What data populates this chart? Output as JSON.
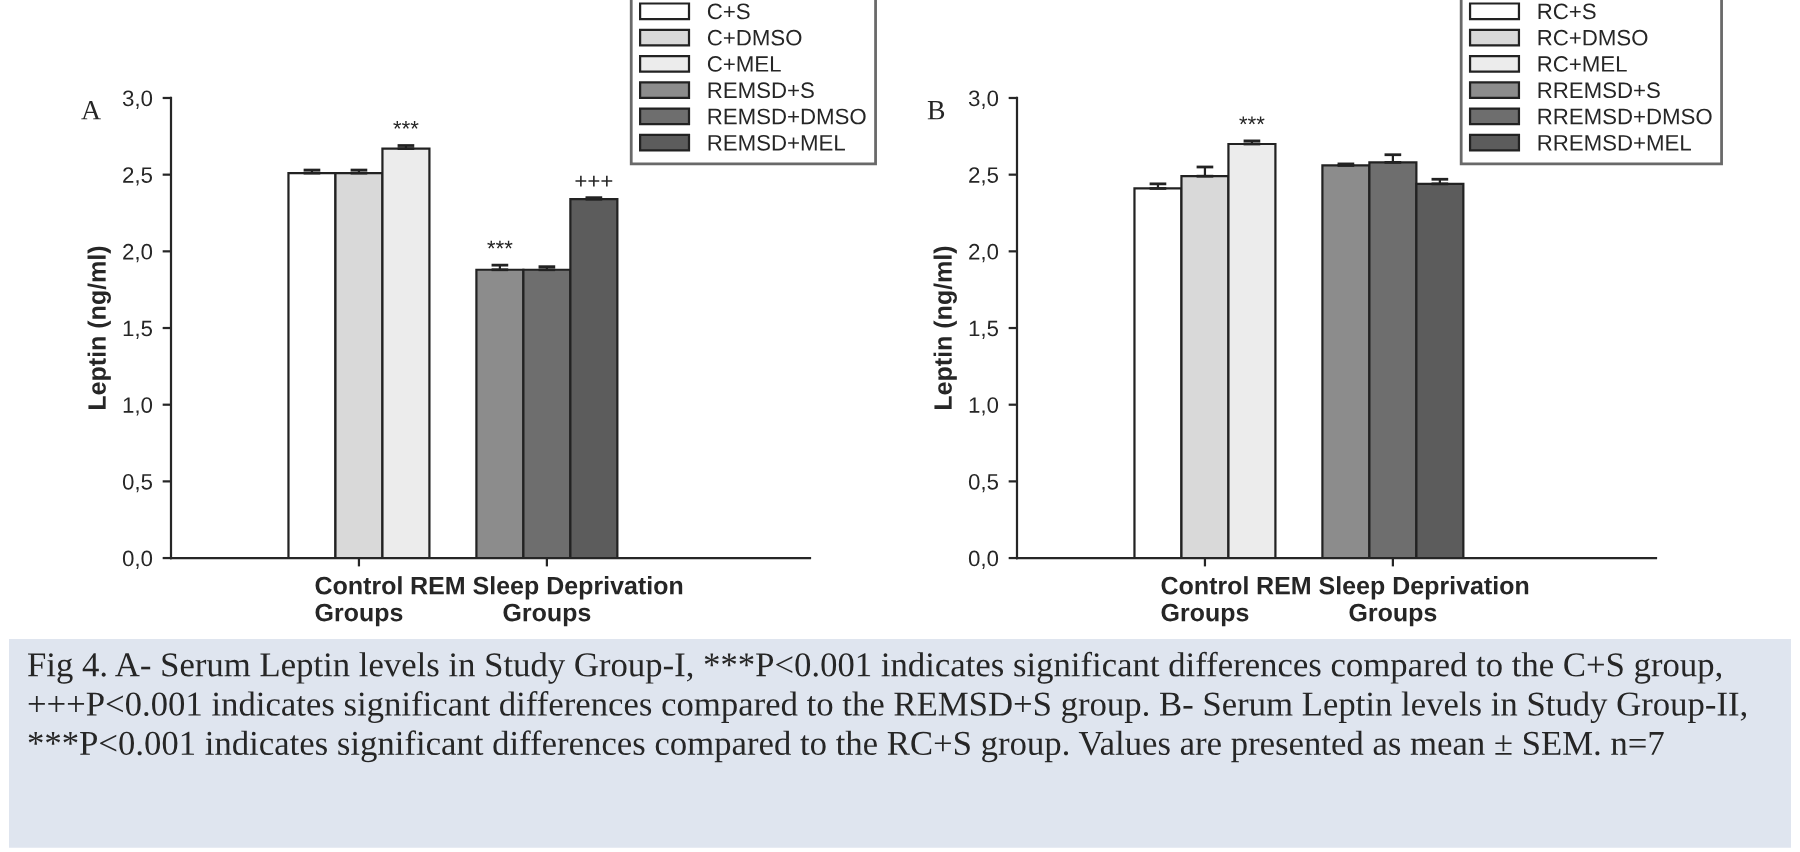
{
  "chart_data": [
    {
      "type": "bar",
      "title": "A",
      "ylabel": "Leptin (ng/ml)",
      "categories": [
        "Control\nGroups",
        "REM Sleep Deprivation\nGroups"
      ],
      "series": [
        {
          "name": "C+S",
          "color": "#ffffff",
          "values": [
            2.51,
            null
          ],
          "errors": [
            0.02,
            null
          ]
        },
        {
          "name": "C+DMSO",
          "color": "#d9d9d9",
          "values": [
            2.51,
            null
          ],
          "errors": [
            0.02,
            null
          ]
        },
        {
          "name": "C+MEL",
          "color": "#ececec",
          "values": [
            2.67,
            null
          ],
          "errors": [
            0.02,
            null
          ]
        },
        {
          "name": "REMSD+S",
          "color": "#8c8c8c",
          "values": [
            null,
            1.88
          ],
          "errors": [
            null,
            0.03
          ]
        },
        {
          "name": "REMSD+DMSO",
          "color": "#6e6e6e",
          "values": [
            null,
            1.88
          ],
          "errors": [
            null,
            0.02
          ]
        },
        {
          "name": "REMSD+MEL",
          "color": "#5c5c5c",
          "values": [
            null,
            2.34
          ],
          "errors": [
            null,
            0.01
          ]
        }
      ],
      "ylim": [
        0,
        3
      ],
      "yticks": [
        {
          "value": 0,
          "label": "0,0"
        },
        {
          "value": 0.5,
          "label": "0,5"
        },
        {
          "value": 1,
          "label": "1,0"
        },
        {
          "value": 1.5,
          "label": "1,5"
        },
        {
          "value": 2,
          "label": "2,0"
        },
        {
          "value": 2.5,
          "label": "2,5"
        },
        {
          "value": 3,
          "label": "3,0"
        }
      ],
      "legend": "top right",
      "grid": false,
      "annotations": [
        "***",
        "***",
        "+++",
        "Fig 4. A- Serum Leptin levels in Study Group-I, ***P<0.001 indicates significant differences compared to the C+S group, +++P<0.001 indicates significant differences compared to the REMSD+S group. B- Serum Leptin levels in Study Group-II, ***P<0.001 indicates significant differences compared to the RC+S group. Values are presented as mean ± SEM. n=7"
      ]
    },
    {
      "type": "bar",
      "title": "B",
      "ylabel": "Leptin (ng/ml)",
      "categories": [
        "Control\nGroups",
        "REM Sleep Deprivation\nGroups"
      ],
      "series": [
        {
          "name": "RC+S",
          "color": "#ffffff",
          "values": [
            2.41,
            null
          ],
          "errors": [
            0.03,
            null
          ]
        },
        {
          "name": "RC+DMSO",
          "color": "#d9d9d9",
          "values": [
            2.49,
            null
          ],
          "errors": [
            0.06,
            null
          ]
        },
        {
          "name": "RC+MEL",
          "color": "#ececec",
          "values": [
            2.7,
            null
          ],
          "errors": [
            0.02,
            null
          ]
        },
        {
          "name": "RREMSD+S",
          "color": "#8c8c8c",
          "values": [
            null,
            2.56
          ],
          "errors": [
            null,
            0.01
          ]
        },
        {
          "name": "RREMSD+DMSO",
          "color": "#6e6e6e",
          "values": [
            null,
            2.58
          ],
          "errors": [
            null,
            0.05
          ]
        },
        {
          "name": "RREMSD+MEL",
          "color": "#5c5c5c",
          "values": [
            null,
            2.44
          ],
          "errors": [
            null,
            0.03
          ]
        }
      ],
      "ylim": [
        0,
        3
      ],
      "yticks": [
        {
          "value": 0,
          "label": "0,0"
        },
        {
          "value": 0.5,
          "label": "0,5"
        },
        {
          "value": 1,
          "label": "1,0"
        },
        {
          "value": 1.5,
          "label": "1,5"
        },
        {
          "value": 2,
          "label": "2,0"
        },
        {
          "value": 2.5,
          "label": "2,5"
        },
        {
          "value": 3,
          "label": "3,0"
        }
      ],
      "legend": "top right",
      "grid": false,
      "annotations": [
        "***"
      ]
    }
  ]
}
